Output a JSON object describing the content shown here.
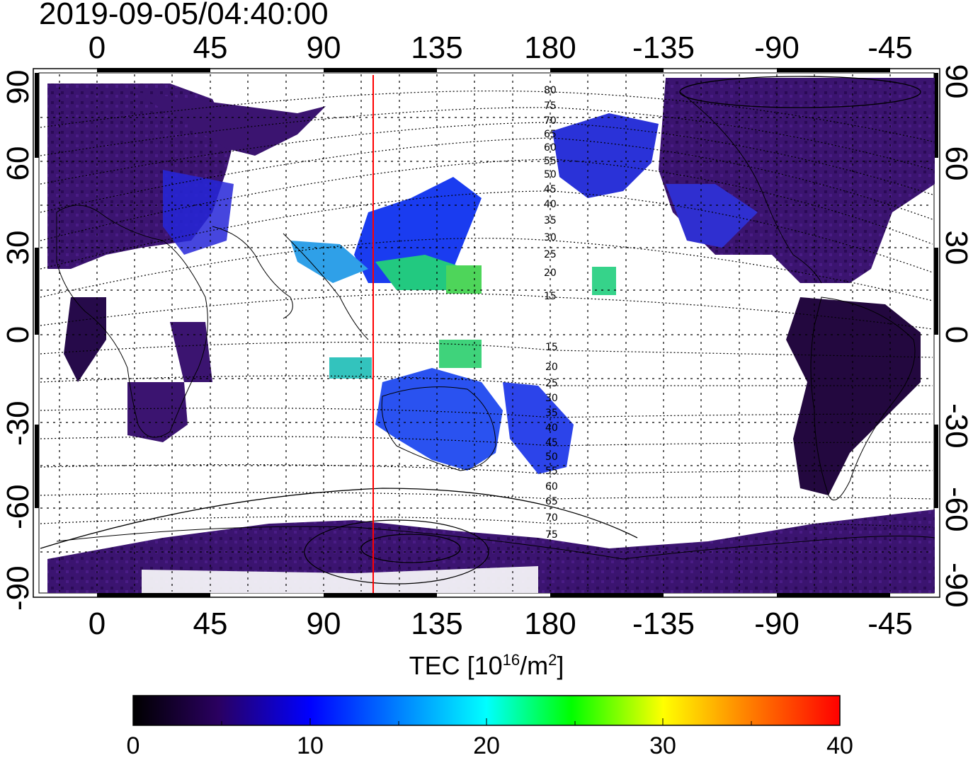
{
  "title": "2019-09-05/04:40:00",
  "map": {
    "lon_ticks": [
      "0",
      "45",
      "90",
      "135",
      "180",
      "-135",
      "-90",
      "-45"
    ],
    "lat_ticks_left": [
      "90",
      "60",
      "30",
      "0",
      "-30",
      "-60",
      "-90"
    ],
    "lat_ticks_right": [
      "90",
      "60",
      "30",
      "0",
      "-30",
      "-60",
      "-90"
    ],
    "marker_line_color": "#ff0000",
    "marker_longitude": 110,
    "contour_labels_north": [
      "80",
      "75",
      "70",
      "65",
      "60",
      "55",
      "50",
      "45",
      "40",
      "35",
      "30",
      "25",
      "20",
      "15"
    ],
    "contour_labels_south": [
      "15",
      "20",
      "25",
      "30",
      "35",
      "40",
      "45",
      "50",
      "55",
      "60",
      "65",
      "70",
      "75"
    ]
  },
  "colorbar": {
    "label_main": "TEC  [10",
    "label_exp": "16",
    "label_unit": "/m",
    "label_exp2": "2",
    "label_end": "]",
    "ticks": [
      "0",
      "10",
      "20",
      "30",
      "40"
    ],
    "colors": [
      "#000000",
      "#2a0060",
      "#0000ff",
      "#00ffff",
      "#00ff00",
      "#ffff00",
      "#ff8000",
      "#ff0000"
    ]
  }
}
